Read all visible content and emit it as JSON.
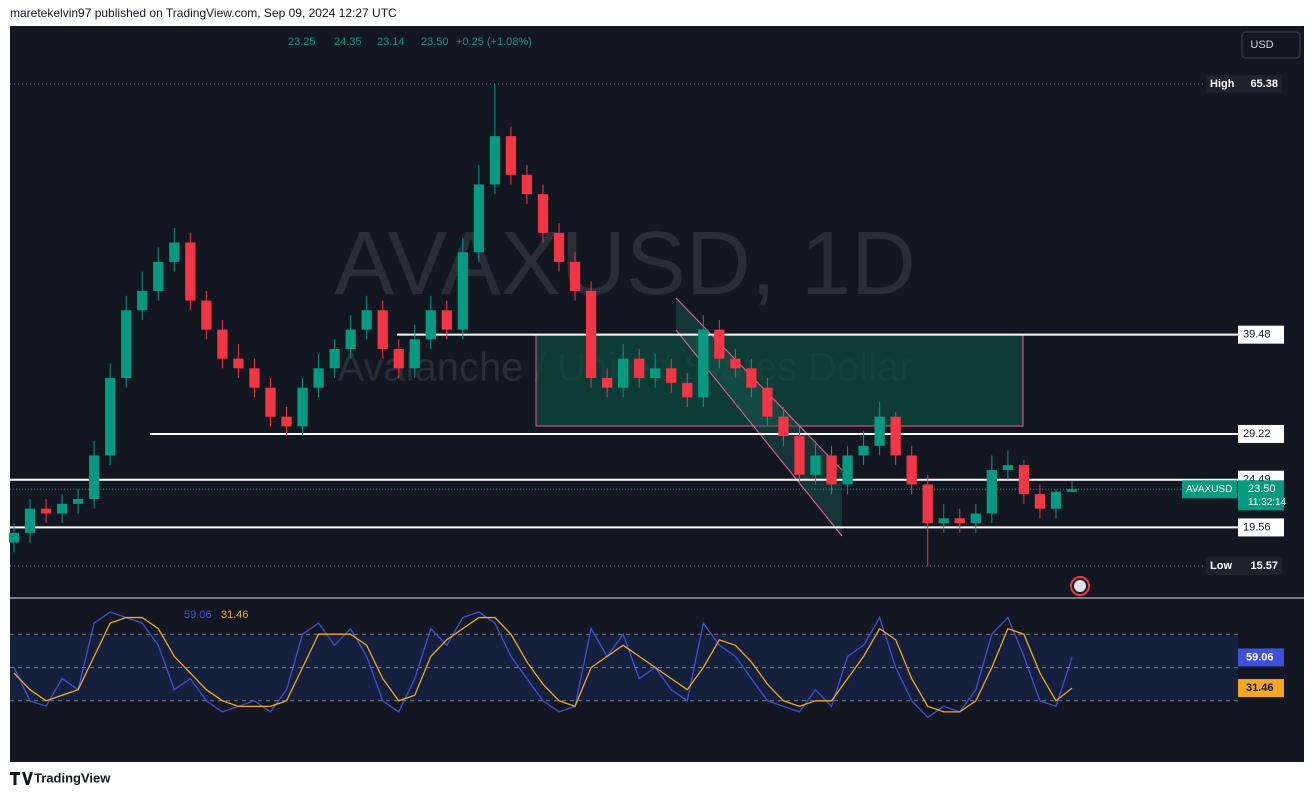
{
  "header": {
    "publisher": "maretekelvin97 published on TradingView.com, Sep 09, 2024 12:27 UTC"
  },
  "footer": {
    "brand": "TradingView"
  },
  "chart_data": {
    "type": "candlestick",
    "symbol": "AVAXUSD",
    "interval": "1D",
    "watermark": "AVAXUSD, 1D",
    "description": "Avalanche / United States Dollar",
    "currency": "USD",
    "ohlc_header": {
      "open": 23.25,
      "high": 24.35,
      "low": 23.14,
      "close": 23.5,
      "close_label": "23.50",
      "change": "+0.25 (+1.08%)"
    },
    "up_color": "#089981",
    "down_color": "#f23645",
    "ylim": [
      12.37,
      71.17
    ],
    "open": [
      18,
      19,
      21.5,
      21,
      22,
      22.5,
      27,
      35,
      42,
      44,
      47,
      49,
      43,
      40,
      37,
      36,
      34,
      31,
      30,
      34,
      36,
      38,
      40,
      42,
      38,
      36,
      39,
      42,
      40,
      48,
      55,
      60,
      56,
      54,
      50,
      47,
      44,
      35,
      34,
      37,
      35,
      36,
      34.5,
      33,
      40,
      37,
      36,
      34,
      31,
      29,
      25,
      27,
      24,
      27,
      28,
      31,
      27,
      24,
      20,
      20.5,
      20,
      21,
      25.5,
      26,
      23,
      21.5,
      23.25
    ],
    "close": [
      19,
      21.5,
      21,
      22,
      22.5,
      27,
      35,
      42,
      44,
      47,
      49,
      43,
      40,
      37,
      36,
      34,
      31,
      30,
      34,
      36,
      38,
      40,
      42,
      38,
      36,
      39,
      42,
      40,
      48,
      55,
      60,
      56,
      54,
      50,
      47,
      44,
      35,
      34,
      37,
      35,
      36,
      34.5,
      33,
      40,
      37,
      36,
      34,
      31,
      29,
      25,
      27,
      24,
      27,
      28,
      31,
      27,
      24,
      20,
      20.5,
      20,
      21,
      25.5,
      26,
      23,
      21.5,
      23.25,
      23.5
    ],
    "high": [
      20,
      22.5,
      22.5,
      23,
      23.5,
      28.5,
      36.5,
      43.5,
      46,
      48.5,
      50.5,
      50,
      44,
      41,
      38.5,
      37,
      35,
      32,
      35,
      37.5,
      39,
      41.5,
      43.5,
      43,
      39,
      40.5,
      43.5,
      43,
      49.5,
      57,
      65.38,
      61,
      57,
      55,
      51,
      48,
      45,
      36,
      38.5,
      38,
      37.5,
      37,
      35.5,
      41.5,
      41,
      38,
      37,
      35,
      32,
      30,
      28.5,
      28,
      28,
      29.5,
      32.5,
      31.5,
      28,
      25,
      22,
      21.5,
      22,
      27,
      27.5,
      26.5,
      24,
      23.5,
      24.35
    ],
    "low": [
      17,
      18,
      20,
      20,
      21,
      21.5,
      26,
      34,
      41,
      43,
      46,
      42,
      39,
      36,
      35,
      33,
      30,
      29,
      29,
      33,
      35,
      37,
      39,
      37,
      35,
      35,
      38,
      39,
      39,
      47,
      54,
      55,
      53,
      49,
      46,
      43,
      34,
      33,
      33,
      34,
      34,
      33.5,
      32,
      32,
      36,
      35,
      33,
      30,
      28,
      24,
      24,
      23,
      23,
      26,
      27,
      26,
      23,
      15.57,
      19,
      19,
      19,
      20,
      24.5,
      22,
      20.5,
      20.5,
      23.14
    ],
    "levels": [
      39.48,
      29.22,
      24.49,
      19.56
    ],
    "high_marker": {
      "name": "High",
      "value": 65.38
    },
    "low_marker": {
      "name": "Low",
      "value": 15.57
    },
    "last_price": {
      "value": 23.5,
      "label": "23.50",
      "countdown": "11:32:14"
    },
    "oscillator": {
      "ylim": [
        0,
        100
      ],
      "bands": [
        20,
        50,
        80
      ],
      "series": [
        {
          "name": "K",
          "color": "#3f51d8",
          "last_label": "59.06",
          "values": [
            50,
            20,
            15,
            40,
            30,
            90,
            100,
            95,
            90,
            70,
            30,
            40,
            20,
            10,
            15,
            20,
            10,
            30,
            80,
            90,
            70,
            85,
            60,
            20,
            10,
            40,
            85,
            70,
            95,
            100,
            90,
            60,
            40,
            20,
            10,
            15,
            85,
            60,
            80,
            40,
            50,
            30,
            20,
            90,
            70,
            60,
            40,
            20,
            15,
            10,
            30,
            15,
            60,
            70,
            95,
            50,
            20,
            5,
            15,
            10,
            30,
            80,
            95,
            60,
            20,
            15,
            59.06
          ]
        },
        {
          "name": "D",
          "color": "#f5a623",
          "last_label": "31.46",
          "values": [
            45,
            30,
            20,
            25,
            30,
            60,
            90,
            95,
            95,
            85,
            60,
            45,
            30,
            20,
            15,
            15,
            15,
            20,
            50,
            80,
            80,
            80,
            70,
            40,
            20,
            25,
            60,
            75,
            85,
            95,
            95,
            80,
            55,
            35,
            20,
            15,
            50,
            60,
            70,
            60,
            50,
            40,
            30,
            50,
            75,
            70,
            55,
            35,
            20,
            15,
            20,
            20,
            40,
            60,
            85,
            75,
            40,
            15,
            10,
            10,
            20,
            50,
            85,
            80,
            45,
            20,
            31.46
          ]
        }
      ]
    }
  }
}
